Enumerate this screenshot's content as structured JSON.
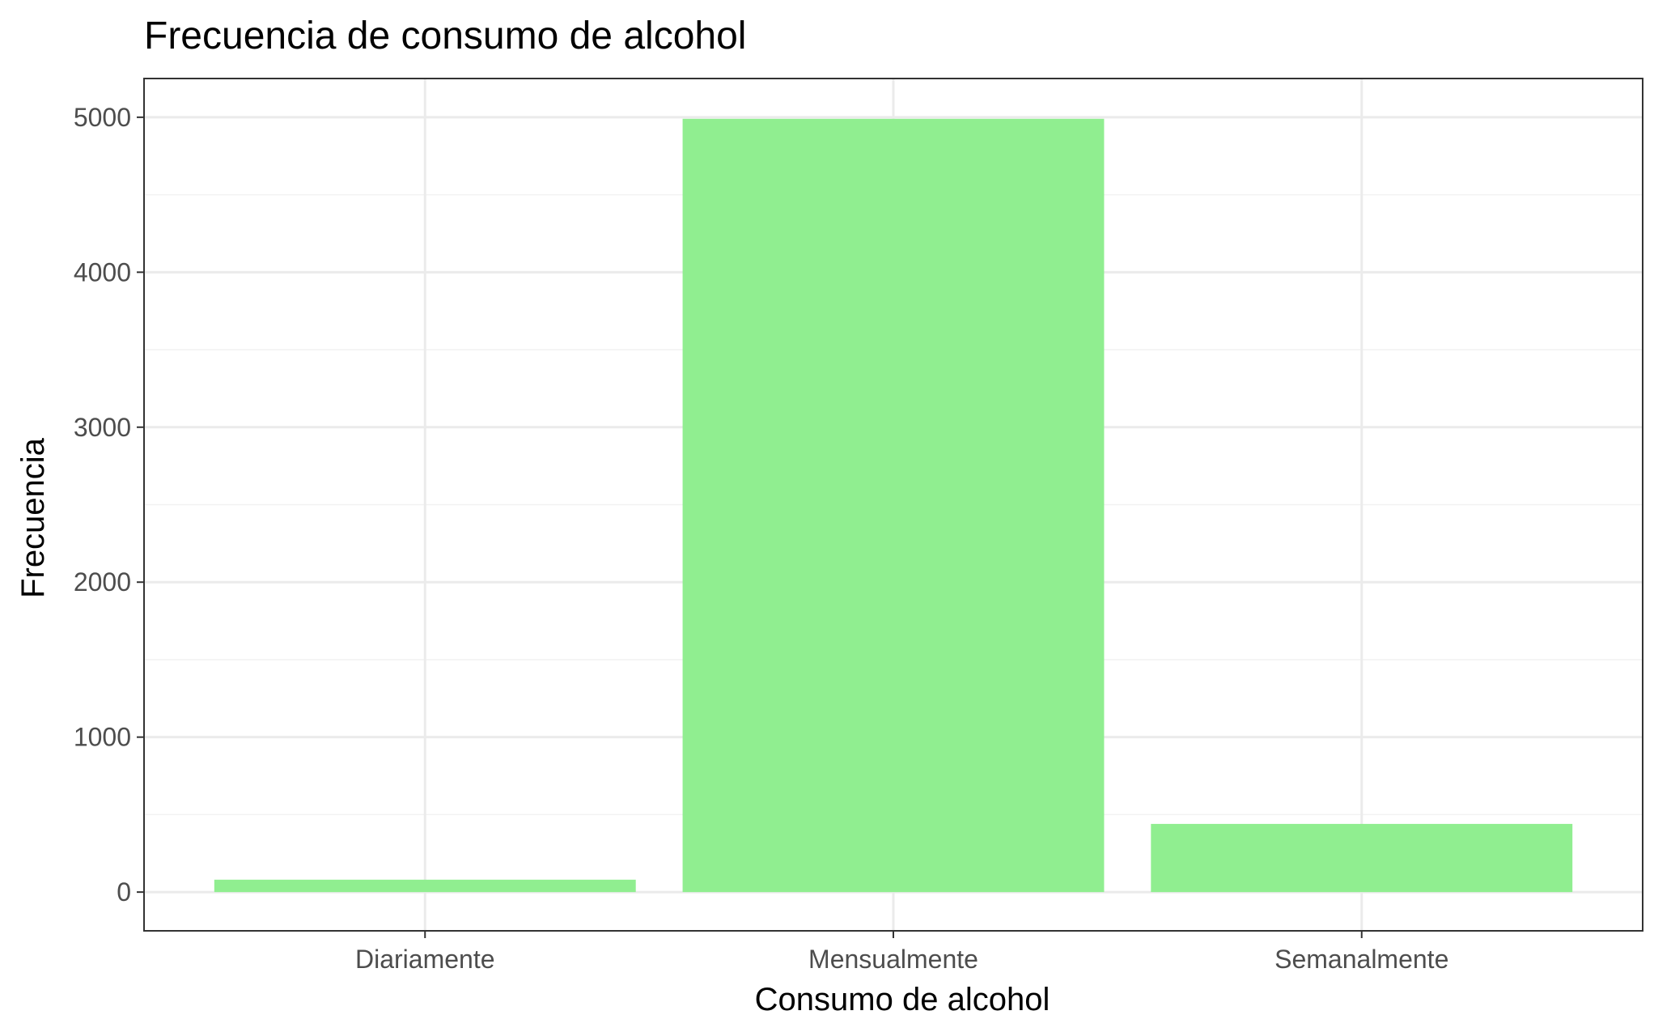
{
  "chart_data": {
    "type": "bar",
    "title": "Frecuencia de consumo de alcohol",
    "xlabel": "Consumo de alcohol",
    "ylabel": "Frecuencia",
    "categories": [
      "Diariamente",
      "Mensualmente",
      "Semanalmente"
    ],
    "values": [
      80,
      4990,
      440
    ],
    "ylim": [
      -250,
      5250
    ],
    "yticks": [
      0,
      1000,
      2000,
      3000,
      4000,
      5000
    ],
    "ytick_labels": [
      "0",
      "1000",
      "2000",
      "3000",
      "4000",
      "5000"
    ],
    "grid": true,
    "legend": "none",
    "bar_color": "#90EE90",
    "grid_major_color": "#EBEBEB",
    "grid_minor_color": "#F2F2F2",
    "panel_border_color": "#333333",
    "background_color": "#FFFFFF"
  }
}
